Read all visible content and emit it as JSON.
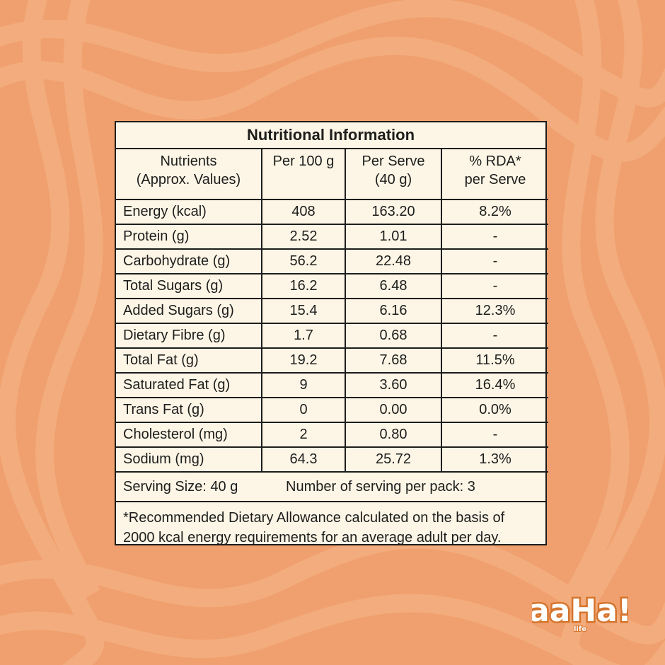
{
  "colors": {
    "background": "#f0a06e",
    "swirl": "#f6b78a",
    "panel": "#fdf6e7",
    "ink": "#1d1d1b",
    "logo_fill": "#ffffff",
    "logo_stroke": "#d5742c"
  },
  "table": {
    "title": "Nutritional Information",
    "headers": [
      "Nutrients\n(Approx. Values)",
      "Per 100 g",
      "Per Serve\n(40 g)",
      "% RDA*\nper Serve"
    ],
    "rows": [
      [
        "Energy (kcal)",
        "408",
        "163.20",
        "8.2%"
      ],
      [
        "Protein (g)",
        "2.52",
        "1.01",
        "-"
      ],
      [
        "Carbohydrate (g)",
        "56.2",
        "22.48",
        "-"
      ],
      [
        "Total Sugars (g)",
        "16.2",
        "6.48",
        "-"
      ],
      [
        "Added Sugars (g)",
        "15.4",
        "6.16",
        "12.3%"
      ],
      [
        "Dietary Fibre (g)",
        "1.7",
        "0.68",
        "-"
      ],
      [
        "Total Fat (g)",
        "19.2",
        "7.68",
        "11.5%"
      ],
      [
        "Saturated Fat (g)",
        "9",
        "3.60",
        "16.4%"
      ],
      [
        "Trans Fat (g)",
        "0",
        "0.00",
        "0.0%"
      ],
      [
        "Cholesterol (mg)",
        "2",
        "0.80",
        "-"
      ],
      [
        "Sodium (mg)",
        "64.3",
        "25.72",
        "1.3%"
      ]
    ],
    "serving_size": "Serving Size: 40 g",
    "servings_per_pack": "Number of serving per pack: 3",
    "footnote": "*Recommended Dietary Allowance calculated on the basis of 2000 kcal energy requirements for an average adult per day."
  },
  "brand": {
    "logo_text": "aaHa!",
    "logo_subtext": "life",
    "logo_icon": "brand-logo"
  }
}
